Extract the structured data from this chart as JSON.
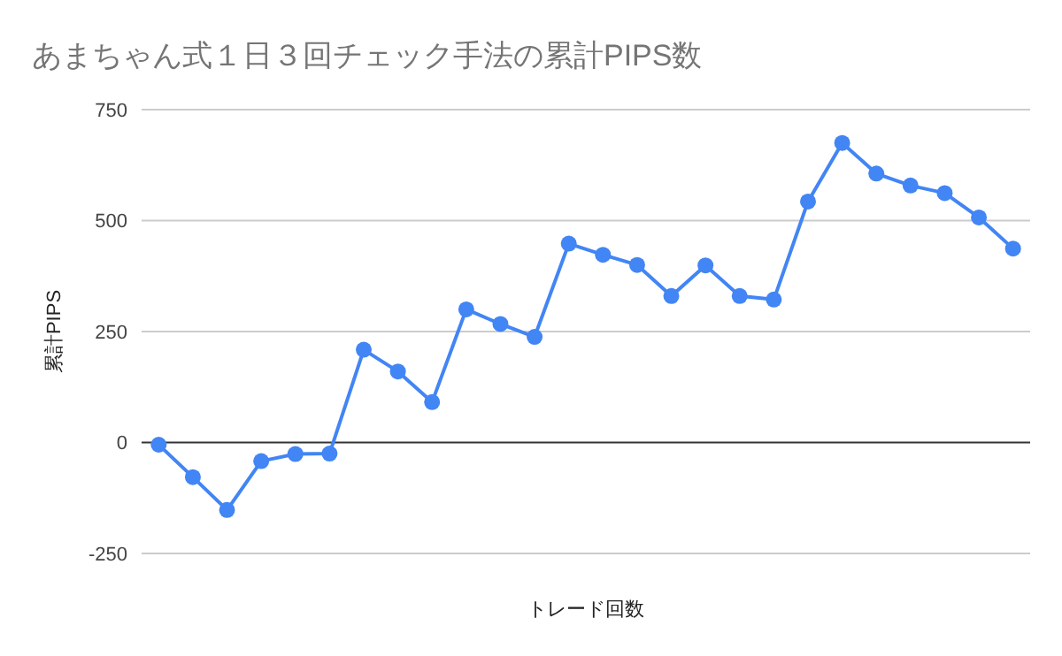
{
  "chart_data": {
    "type": "line",
    "title": "あまちゃん式１日３回チェック手法の累計PIPS数",
    "xlabel": "トレード回数",
    "ylabel": "累計PIPS",
    "categories": [
      null,
      null,
      null,
      null,
      null,
      null,
      null,
      null,
      null,
      null,
      null,
      null,
      null,
      null,
      null,
      null,
      null,
      null,
      null,
      null,
      null,
      null,
      null,
      null,
      null,
      null
    ],
    "series": [
      {
        "color": "#4285f4",
        "values": [
          -5,
          -78,
          -152,
          -42,
          -26,
          -25,
          209,
          160,
          91,
          300,
          267,
          238,
          448,
          423,
          400,
          330,
          399,
          330,
          322,
          543,
          675,
          606,
          579,
          562,
          507,
          437
        ]
      }
    ],
    "ylim": [
      -250,
      750
    ],
    "yticks": [
      -250,
      0,
      250,
      500,
      750
    ],
    "grid": "y",
    "marker": "circle",
    "line_style": "solid"
  }
}
